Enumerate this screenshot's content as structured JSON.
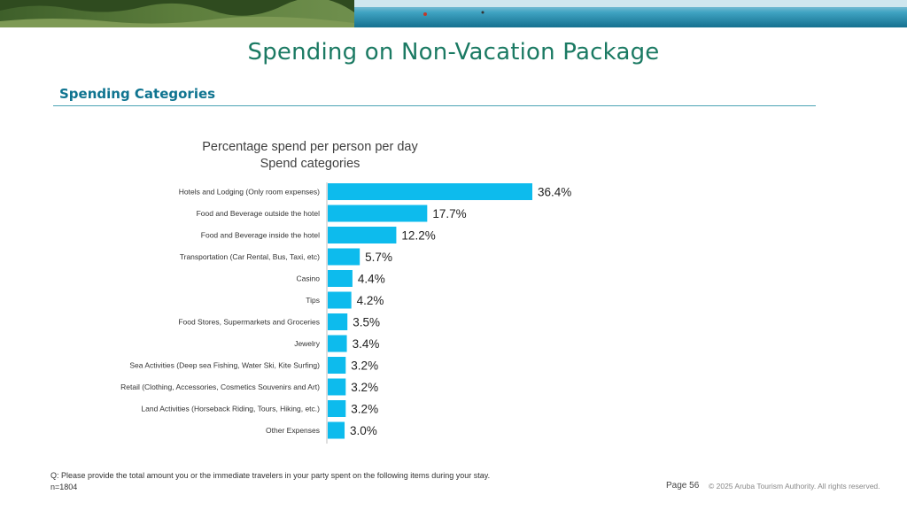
{
  "header": {
    "title": "Spending on Non-Vacation Package",
    "section": "Spending Categories"
  },
  "chart_data": {
    "type": "bar",
    "orientation": "horizontal",
    "title": "Percentage spend per person per day",
    "subtitle": "Spend categories",
    "categories": [
      "Hotels and Lodging (Only room expenses)",
      "Food and Beverage outside the hotel",
      "Food and Beverage inside the hotel",
      "Transportation (Car Rental, Bus, Taxi, etc)",
      "Casino",
      "Tips",
      "Food Stores, Supermarkets and Groceries",
      "Jewelry",
      "Sea Activities (Deep sea Fishing, Water Ski, Kite Surfing)",
      "Retail (Clothing, Accessories, Cosmetics Souvenirs and Art)",
      "Land Activities (Horseback Riding, Tours, Hiking, etc.)",
      "Other Expenses"
    ],
    "values": [
      36.4,
      17.7,
      12.2,
      5.7,
      4.4,
      4.2,
      3.5,
      3.4,
      3.2,
      3.2,
      3.2,
      3.0
    ],
    "value_labels": [
      "36.4%",
      "17.7%",
      "12.2%",
      "5.7%",
      "4.4%",
      "4.2%",
      "3.5%",
      "3.4%",
      "3.2%",
      "3.2%",
      "3.2%",
      "3.0%"
    ],
    "unit": "%",
    "bar_color": "#0dbbed",
    "grid": false,
    "legend": "none"
  },
  "footer": {
    "question": "Q: Please provide the total amount you or the immediate travelers in your party spent on the following items during your stay.",
    "sample": "n=1804",
    "page": "Page 56",
    "copyright": "© 2025 Aruba Tourism Authority. All rights reserved."
  },
  "colors": {
    "title": "#1b7a63",
    "section": "#0f7490",
    "bar": "#0dbbed"
  }
}
